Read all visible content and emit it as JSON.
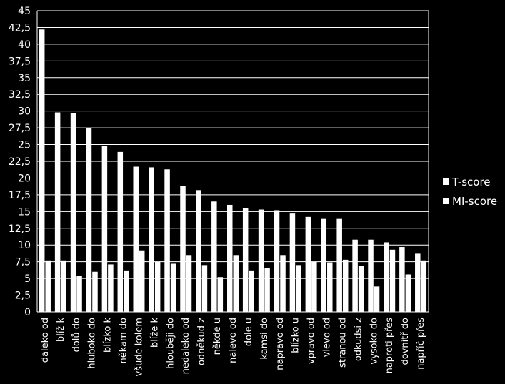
{
  "chart_data": {
    "type": "bar",
    "categories": [
      "daleko od",
      "blíž k",
      "dolů do",
      "hluboko do",
      "blízko k",
      "někam do",
      "všude kolem",
      "blíže k",
      "hlouběji do",
      "nedaleko od",
      "odněkud z",
      "někde u",
      "nalevo od",
      "dole u",
      "kamsi do",
      "napravo od",
      "blízko u",
      "vpravo od",
      "vlevo od",
      "stranou od",
      "odkudsi z",
      "vysoko do",
      "naproti přes",
      "dovnitř do",
      "napříč přes"
    ],
    "series": [
      {
        "name": "T-score",
        "values": [
          42.2,
          29.8,
          29.7,
          27.5,
          24.8,
          23.9,
          21.7,
          21.6,
          21.3,
          18.8,
          18.2,
          16.5,
          16.0,
          15.5,
          15.3,
          15.2,
          14.7,
          14.2,
          13.9,
          13.9,
          10.8,
          10.8,
          10.4,
          9.7,
          8.7
        ]
      },
      {
        "name": "MI-score",
        "values": [
          7.7,
          7.7,
          5.4,
          6.0,
          7.1,
          6.2,
          9.2,
          7.5,
          7.2,
          8.5,
          7.0,
          5.2,
          8.5,
          6.2,
          6.6,
          8.5,
          7.0,
          7.5,
          7.4,
          7.8,
          6.9,
          3.8,
          9.3,
          5.6,
          7.7
        ]
      }
    ],
    "ylim": [
      0,
      45
    ],
    "yticks": [
      "0",
      "2,5",
      "5",
      "7,5",
      "10",
      "12,5",
      "15",
      "17,5",
      "20",
      "22,5",
      "25",
      "27,5",
      "30",
      "32,5",
      "35",
      "37,5",
      "40",
      "42,5",
      "45"
    ],
    "grid": true,
    "legend_position": "right",
    "colors": {
      "background": "#000000",
      "bars": "#ffffff",
      "grid": "#ffffff",
      "text": "#ffffff"
    }
  }
}
